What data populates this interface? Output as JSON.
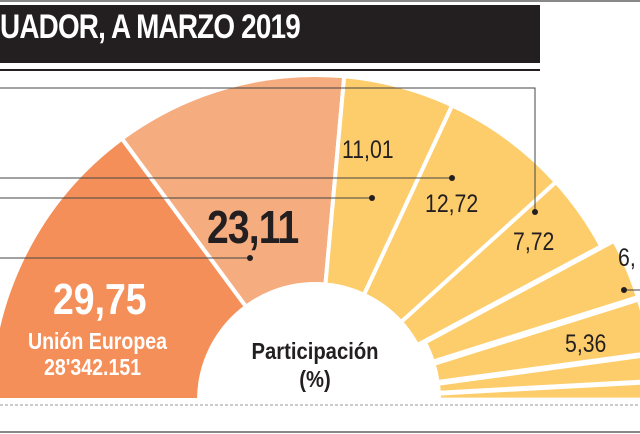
{
  "title": "UADOR, A MARZO 2019",
  "chart_data": {
    "type": "pie",
    "variant": "semi-donut",
    "center_label": "Participación",
    "center_unit": "(%)",
    "slices": [
      {
        "label": "29,75",
        "value": 29.75,
        "name": "Unión Europea",
        "amount": "28'342.151",
        "color": "#f58f5a"
      },
      {
        "label": "23,11",
        "value": 23.11,
        "color": "#f5ad80"
      },
      {
        "label": "11,01",
        "value": 11.01,
        "color": "#fdcd6b"
      },
      {
        "label": "12,72",
        "value": 12.72,
        "color": "#fdcd6b"
      },
      {
        "label": "7,72",
        "value": 7.72,
        "color": "#fdcd6b"
      },
      {
        "label": "6,",
        "value": 6.0,
        "color": "#fdcd6b"
      },
      {
        "label": "5,36",
        "value": 5.36,
        "color": "#fdcd6b"
      },
      {
        "label": "",
        "value": 2.6,
        "color": "#fdcd6b"
      },
      {
        "label": "",
        "value": 1.73,
        "color": "#fdcd6b"
      }
    ]
  }
}
